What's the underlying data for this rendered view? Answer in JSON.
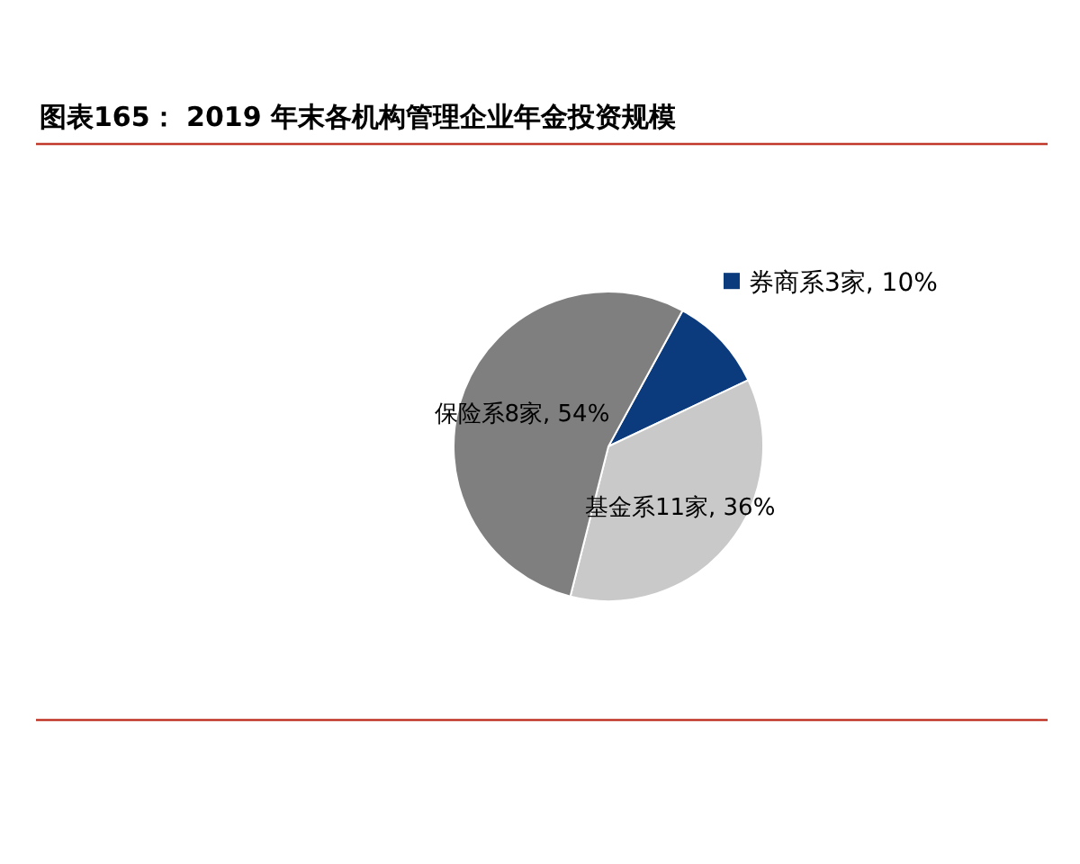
{
  "chart_data": {
    "type": "pie",
    "title": "图表165： 2019 年末各机构管理企业年金投资规模",
    "categories": [
      "券商系3家",
      "基金系11家",
      "保险系8家"
    ],
    "values": [
      10,
      36,
      54
    ],
    "colors": [
      "#0b3b7c",
      "#c9c9c9",
      "#7f7f7f"
    ],
    "value_labels": [
      "10%",
      "36%",
      "54%"
    ]
  }
}
